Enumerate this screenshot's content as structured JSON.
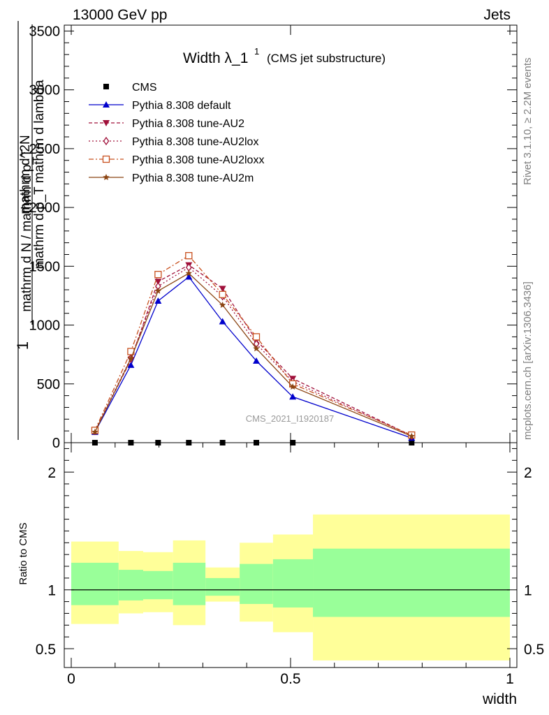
{
  "header": {
    "left": "13000 GeV pp",
    "right": "Jets"
  },
  "side_labels": {
    "rivet": "Rivet 3.1.10, ≥ 2.2M events",
    "mcplots": "mcplots.cern.ch [arXiv:1306.3436]"
  },
  "chart_data": [
    {
      "type": "line",
      "title": "Width λ_1",
      "title_sup": "1",
      "subtitle": "(CMS jet substructure)",
      "watermark": "CMS_2021_I1920187",
      "ylabel_num": "1",
      "ylabel_den": "mathrm d N / mathrm d p_T",
      "ylabel_top": "mathrm d^2N",
      "ylabel_bot": "mathrm d p_T mathrm d lambda",
      "xlim": [
        0,
        1
      ],
      "ylim": [
        0,
        3550
      ],
      "yticks": [
        0,
        500,
        1000,
        1500,
        2000,
        2500,
        3000,
        3500
      ],
      "ytick_labels": [
        "0",
        "500",
        "1000",
        "1500",
        "2000",
        "2500",
        "3000",
        "3500"
      ],
      "grid": false,
      "legend_position": "top-left",
      "x": [
        0.054,
        0.136,
        0.198,
        0.268,
        0.345,
        0.422,
        0.505,
        0.776
      ],
      "series": [
        {
          "name": "CMS",
          "color": "#000000",
          "marker": "square",
          "dash": "none",
          "values": [
            0,
            0,
            0,
            0,
            0,
            0,
            0,
            0
          ]
        },
        {
          "name": "Pythia 8.308 default",
          "color": "#0000cc",
          "marker": "triangle-up",
          "dash": "solid",
          "values": [
            90,
            660,
            1205,
            1410,
            1030,
            695,
            390,
            40
          ]
        },
        {
          "name": "Pythia 8.308 tune-AU2",
          "color": "#a0103a",
          "marker": "triangle-down",
          "dash": "dashed",
          "values": [
            95,
            705,
            1370,
            1510,
            1310,
            870,
            545,
            60
          ]
        },
        {
          "name": "Pythia 8.308 tune-AU2lox",
          "color": "#a0103a",
          "marker": "diamond-open",
          "dash": "dotted",
          "values": [
            100,
            720,
            1330,
            1490,
            1245,
            840,
            520,
            58
          ]
        },
        {
          "name": "Pythia 8.308 tune-AU2loxx",
          "color": "#c8501e",
          "marker": "square-open",
          "dash": "dashdot",
          "values": [
            105,
            775,
            1430,
            1590,
            1260,
            900,
            500,
            65
          ]
        },
        {
          "name": "Pythia 8.308 tune-AU2m",
          "color": "#8b4513",
          "marker": "star",
          "dash": "solid",
          "values": [
            90,
            715,
            1290,
            1440,
            1170,
            800,
            475,
            55
          ]
        }
      ]
    },
    {
      "type": "area",
      "ylabel": "Ratio to CMS",
      "xlabel": "width",
      "xlim": [
        0,
        1
      ],
      "ylim": [
        0.34,
        2.25
      ],
      "yticks": [
        0.5,
        1,
        2
      ],
      "ytick_labels": [
        "0.5",
        "1",
        "2"
      ],
      "xticks": [
        0,
        0.5,
        1
      ],
      "xtick_labels": [
        "0",
        "0.5",
        "1"
      ],
      "reference_line": 1,
      "bins": [
        0,
        0.108,
        0.164,
        0.232,
        0.306,
        0.384,
        0.46,
        0.551,
        1
      ],
      "band_yellow_low": [
        0.71,
        0.8,
        0.81,
        0.7,
        0.9,
        0.73,
        0.64,
        0.4
      ],
      "band_yellow_high": [
        1.41,
        1.33,
        1.32,
        1.42,
        1.19,
        1.4,
        1.47,
        1.64
      ],
      "band_green_low": [
        0.87,
        0.91,
        0.92,
        0.87,
        0.95,
        0.88,
        0.85,
        0.77
      ],
      "band_green_high": [
        1.23,
        1.17,
        1.16,
        1.23,
        1.1,
        1.22,
        1.26,
        1.35
      ],
      "yellow_color": "#ffff99",
      "green_color": "#99ff99"
    }
  ]
}
